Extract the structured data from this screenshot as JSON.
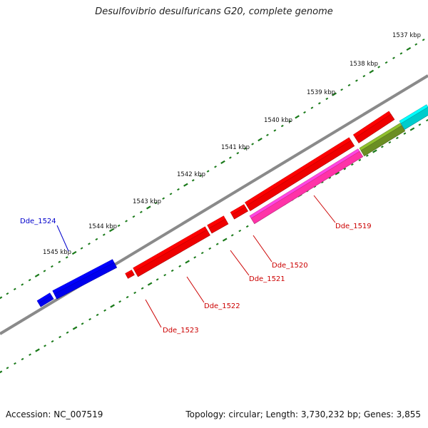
{
  "title": "Desulfovibrio desulfuricans G20, complete genome",
  "footer": {
    "accession": "Accession: NC_007519",
    "summary": "Topology: circular; Length: 3,730,232 bp; Genes: 3,855"
  },
  "colors": {
    "backbone": "#8a8a8a",
    "tick_major": "#1a7a1a",
    "tick_minor": "#1a7a1a",
    "label_reverse_strand": "#0000cc",
    "label_forward_strand": "#cc0000"
  },
  "scale_labels": [
    "1537 kbp",
    "1538 kbp",
    "1539 kbp",
    "1540 kbp",
    "1541 kbp",
    "1542 kbp",
    "1543 kbp",
    "1544 kbp",
    "1545 kbp"
  ],
  "genes": [
    {
      "label": "Dde_1524",
      "color": "#0000ee"
    },
    {
      "label": "Dde_1523",
      "color": "#ee0000"
    },
    {
      "label": "Dde_1522",
      "color": "#ee0000"
    },
    {
      "label": "Dde_1521",
      "color": "#ee0000"
    },
    {
      "label": "Dde_1520",
      "color": "#ee0000"
    },
    {
      "label": "Dde_1519",
      "color": "#ee0000"
    },
    {
      "label": "",
      "color": "#ff33a8"
    },
    {
      "label": "",
      "color": "#6b8e23"
    },
    {
      "label": "",
      "color": "#00cccc"
    }
  ]
}
